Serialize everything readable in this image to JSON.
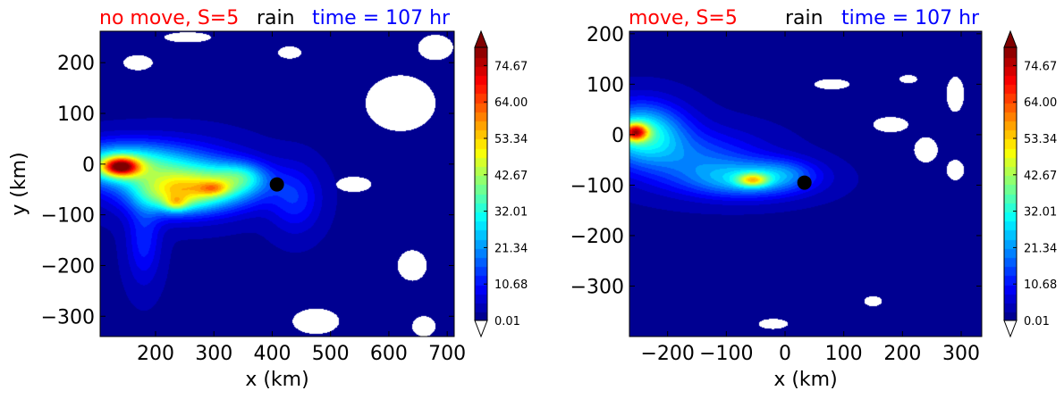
{
  "chart_data": [
    {
      "type": "heatmap",
      "title_left": "no move, S=5",
      "title_center": "rain",
      "title_right": "time = 107 hr",
      "title_left_color": "#ff0000",
      "title_right_color": "#0000ff",
      "xlabel": "x (km)",
      "ylabel": "y (km)",
      "xlim": [
        105,
        712
      ],
      "ylim": [
        -340,
        262
      ],
      "xticks": [
        200,
        300,
        400,
        500,
        600,
        700
      ],
      "yticks": [
        200,
        100,
        0,
        -100,
        -200,
        -300
      ],
      "xtick_labels": [
        "200",
        "300",
        "400",
        "500",
        "600",
        "700"
      ],
      "ytick_labels": [
        "200",
        "100",
        "0",
        "−100",
        "−200",
        "−300"
      ],
      "storm_center": {
        "x": 408,
        "y": -40
      },
      "background_value": 2,
      "blobs": [
        {
          "x": 135,
          "y": 0,
          "sx": 70,
          "sy": 30,
          "v": 28
        },
        {
          "x": 140,
          "y": -5,
          "sx": 22,
          "sy": 13,
          "v": 50
        },
        {
          "x": 240,
          "y": -30,
          "sx": 80,
          "sy": 45,
          "v": 20
        },
        {
          "x": 230,
          "y": -60,
          "sx": 45,
          "sy": 25,
          "v": 22
        },
        {
          "x": 300,
          "y": -45,
          "sx": 60,
          "sy": 30,
          "v": 22
        },
        {
          "x": 300,
          "y": -48,
          "sx": 18,
          "sy": 10,
          "v": 16
        },
        {
          "x": 235,
          "y": -78,
          "sx": 14,
          "sy": 10,
          "v": 16
        },
        {
          "x": 350,
          "y": -25,
          "sx": 30,
          "sy": 20,
          "v": 14
        },
        {
          "x": 180,
          "y": -150,
          "sx": 20,
          "sy": 60,
          "v": 10
        },
        {
          "x": 440,
          "y": -70,
          "sx": 30,
          "sy": 45,
          "v": 10
        }
      ],
      "white_patches": [
        {
          "x": 170,
          "y": 200,
          "sx": 25,
          "sy": 15
        },
        {
          "x": 255,
          "y": 250,
          "sx": 40,
          "sy": 10
        },
        {
          "x": 430,
          "y": 220,
          "sx": 20,
          "sy": 12
        },
        {
          "x": 620,
          "y": 120,
          "sx": 60,
          "sy": 55
        },
        {
          "x": 680,
          "y": 230,
          "sx": 30,
          "sy": 25
        },
        {
          "x": 540,
          "y": -40,
          "sx": 30,
          "sy": 15
        },
        {
          "x": 640,
          "y": -200,
          "sx": 25,
          "sy": 30
        },
        {
          "x": 475,
          "y": -310,
          "sx": 40,
          "sy": 25
        },
        {
          "x": 660,
          "y": -320,
          "sx": 20,
          "sy": 20
        }
      ]
    },
    {
      "type": "heatmap",
      "title_left": "move, S=5",
      "title_center": "rain",
      "title_right": "time = 107 hr",
      "title_left_color": "#ff0000",
      "title_right_color": "#0000ff",
      "xlabel": "x (km)",
      "ylabel": "",
      "xlim": [
        -265,
        335
      ],
      "ylim": [
        -400,
        205
      ],
      "xticks": [
        -200,
        -100,
        0,
        100,
        200,
        300
      ],
      "yticks": [
        200,
        100,
        0,
        -100,
        -200,
        -300
      ],
      "xtick_labels": [
        "−200",
        "−100",
        "0",
        "100",
        "200",
        "300"
      ],
      "ytick_labels": [
        "200",
        "100",
        "0",
        "−100",
        "−200",
        "−300"
      ],
      "storm_center": {
        "x": 33,
        "y": -95
      },
      "background_value": 2,
      "blobs": [
        {
          "x": -245,
          "y": 5,
          "sx": 50,
          "sy": 40,
          "v": 30
        },
        {
          "x": -255,
          "y": 5,
          "sx": 15,
          "sy": 12,
          "v": 45
        },
        {
          "x": -150,
          "y": -50,
          "sx": 80,
          "sy": 40,
          "v": 14
        },
        {
          "x": -60,
          "y": -90,
          "sx": 70,
          "sy": 25,
          "v": 20
        },
        {
          "x": -55,
          "y": -90,
          "sx": 18,
          "sy": 9,
          "v": 28
        },
        {
          "x": 0,
          "y": -75,
          "sx": 40,
          "sy": 20,
          "v": 8
        }
      ],
      "white_patches": [
        {
          "x": 80,
          "y": 100,
          "sx": 30,
          "sy": 10
        },
        {
          "x": 210,
          "y": 110,
          "sx": 15,
          "sy": 8
        },
        {
          "x": 290,
          "y": 80,
          "sx": 15,
          "sy": 35
        },
        {
          "x": 180,
          "y": 20,
          "sx": 30,
          "sy": 15
        },
        {
          "x": 240,
          "y": -30,
          "sx": 20,
          "sy": 25
        },
        {
          "x": 290,
          "y": -70,
          "sx": 15,
          "sy": 20
        },
        {
          "x": -20,
          "y": -375,
          "sx": 25,
          "sy": 10
        },
        {
          "x": 150,
          "y": -330,
          "sx": 15,
          "sy": 10
        }
      ]
    }
  ],
  "colorbar": {
    "min": 0.01,
    "max": 80,
    "tick_values": [
      0.01,
      10.68,
      21.34,
      32.01,
      42.67,
      53.34,
      64.0,
      74.67
    ],
    "tick_labels": [
      "0.01",
      "10.68",
      "21.34",
      "32.01",
      "42.67",
      "53.34",
      "64.00",
      "74.67"
    ],
    "extend": "both",
    "over_color": "#7f0000",
    "under_color": "#ffffff",
    "colormap": "jet"
  }
}
